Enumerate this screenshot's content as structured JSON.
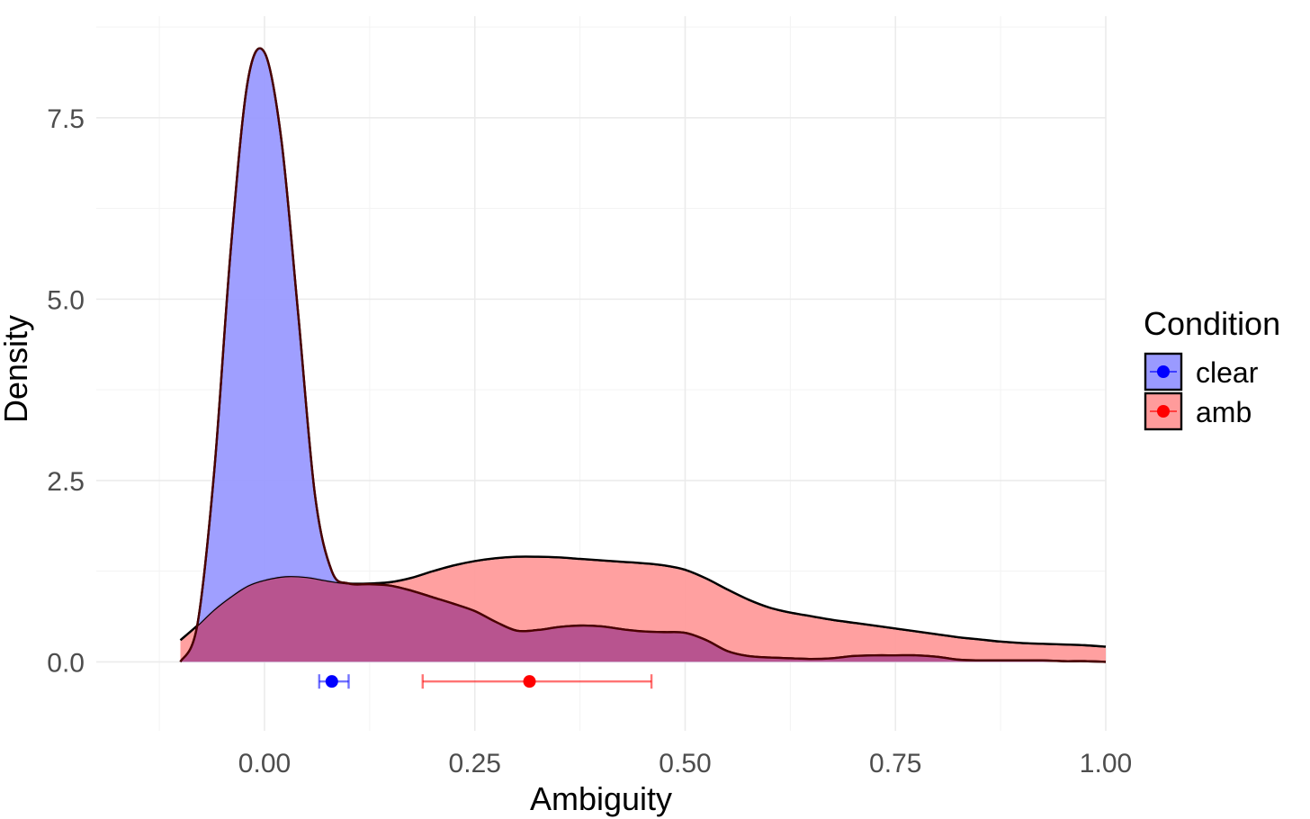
{
  "chart_data": {
    "type": "area",
    "title": "",
    "xlabel": "Ambiguity",
    "ylabel": "Density",
    "xlim": [
      -0.2,
      1.0
    ],
    "ylim": [
      -0.95,
      8.9
    ],
    "x_ticks": [
      0.0,
      0.25,
      0.5,
      0.75,
      1.0
    ],
    "x_tick_labels": [
      "0.00",
      "0.25",
      "0.50",
      "0.75",
      "1.00"
    ],
    "y_ticks": [
      0.0,
      2.5,
      5.0,
      7.5
    ],
    "y_tick_labels": [
      "0.0",
      "2.5",
      "5.0",
      "7.5"
    ],
    "grid": true,
    "legend": {
      "title": "Condition",
      "position": "right",
      "entries": [
        "clear",
        "amb"
      ]
    },
    "series": [
      {
        "name": "clear",
        "fill": "#9a9aff",
        "point_color": "#0000ff",
        "x": [
          -0.1,
          -0.08,
          -0.06,
          -0.04,
          -0.02,
          0.0,
          0.02,
          0.04,
          0.06,
          0.08,
          0.1,
          0.125,
          0.15,
          0.175,
          0.2,
          0.225,
          0.25,
          0.275,
          0.3,
          0.325,
          0.35,
          0.375,
          0.4,
          0.425,
          0.45,
          0.475,
          0.5,
          0.525,
          0.55,
          0.575,
          0.6,
          0.625,
          0.65,
          0.675,
          0.7,
          0.725,
          0.75,
          0.775,
          0.8,
          0.825,
          0.85,
          0.875,
          0.9,
          0.925,
          0.95,
          0.975,
          1.0
        ],
        "y": [
          0.0,
          0.5,
          2.6,
          5.7,
          8.0,
          8.4,
          7.2,
          4.8,
          2.3,
          1.25,
          1.08,
          1.07,
          1.05,
          0.98,
          0.89,
          0.8,
          0.7,
          0.55,
          0.43,
          0.44,
          0.48,
          0.5,
          0.49,
          0.45,
          0.42,
          0.41,
          0.4,
          0.3,
          0.15,
          0.08,
          0.06,
          0.05,
          0.04,
          0.05,
          0.08,
          0.09,
          0.09,
          0.09,
          0.07,
          0.03,
          0.02,
          0.02,
          0.02,
          0.02,
          0.01,
          0.01,
          0.0
        ],
        "mean": 0.08,
        "ci": [
          0.065,
          0.1
        ]
      },
      {
        "name": "amb",
        "fill": "#ff9b9b",
        "point_color": "#ff0000",
        "x": [
          -0.1,
          -0.08,
          -0.06,
          -0.04,
          -0.02,
          0.0,
          0.025,
          0.05,
          0.075,
          0.1,
          0.125,
          0.15,
          0.175,
          0.2,
          0.225,
          0.25,
          0.275,
          0.3,
          0.325,
          0.35,
          0.375,
          0.4,
          0.425,
          0.45,
          0.475,
          0.5,
          0.525,
          0.55,
          0.575,
          0.6,
          0.625,
          0.65,
          0.675,
          0.7,
          0.725,
          0.75,
          0.775,
          0.8,
          0.825,
          0.85,
          0.875,
          0.9,
          0.925,
          0.95,
          0.975,
          1.0
        ],
        "y": [
          0.3,
          0.5,
          0.72,
          0.9,
          1.05,
          1.13,
          1.18,
          1.17,
          1.12,
          1.08,
          1.08,
          1.1,
          1.16,
          1.25,
          1.33,
          1.39,
          1.43,
          1.45,
          1.45,
          1.44,
          1.42,
          1.4,
          1.38,
          1.36,
          1.33,
          1.27,
          1.15,
          1.0,
          0.86,
          0.75,
          0.68,
          0.63,
          0.58,
          0.54,
          0.5,
          0.46,
          0.42,
          0.38,
          0.34,
          0.31,
          0.28,
          0.26,
          0.25,
          0.24,
          0.23,
          0.21
        ],
        "mean": 0.315,
        "ci": [
          0.188,
          0.46
        ]
      }
    ]
  }
}
